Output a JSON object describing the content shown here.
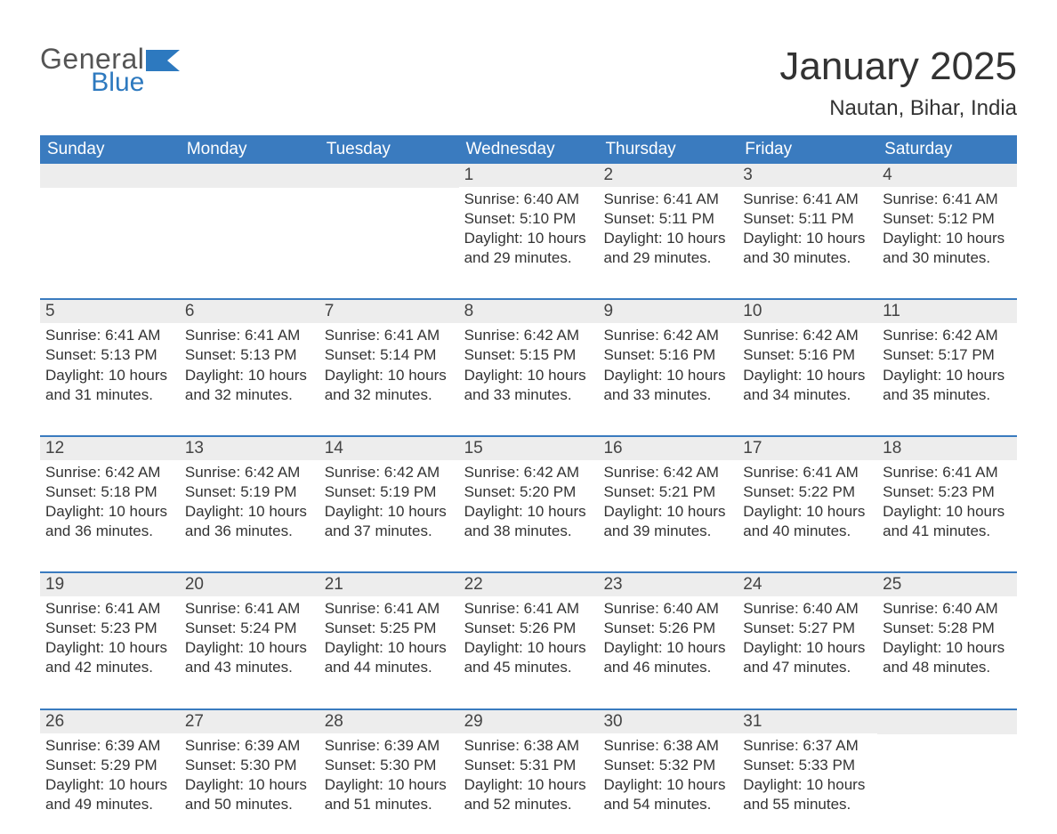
{
  "logo": {
    "word1": "General",
    "word2": "Blue",
    "flag_color": "#2d79bf",
    "gray": "#555555"
  },
  "title": "January 2025",
  "location": "Nautan, Bihar, India",
  "header_bg": "#3a7bbf",
  "band_bg": "#ededed",
  "weekdays": [
    "Sunday",
    "Monday",
    "Tuesday",
    "Wednesday",
    "Thursday",
    "Friday",
    "Saturday"
  ],
  "weeks": [
    [
      null,
      null,
      null,
      {
        "n": "1",
        "sunrise": "Sunrise: 6:40 AM",
        "sunset": "Sunset: 5:10 PM",
        "dl1": "Daylight: 10 hours",
        "dl2": "and 29 minutes."
      },
      {
        "n": "2",
        "sunrise": "Sunrise: 6:41 AM",
        "sunset": "Sunset: 5:11 PM",
        "dl1": "Daylight: 10 hours",
        "dl2": "and 29 minutes."
      },
      {
        "n": "3",
        "sunrise": "Sunrise: 6:41 AM",
        "sunset": "Sunset: 5:11 PM",
        "dl1": "Daylight: 10 hours",
        "dl2": "and 30 minutes."
      },
      {
        "n": "4",
        "sunrise": "Sunrise: 6:41 AM",
        "sunset": "Sunset: 5:12 PM",
        "dl1": "Daylight: 10 hours",
        "dl2": "and 30 minutes."
      }
    ],
    [
      {
        "n": "5",
        "sunrise": "Sunrise: 6:41 AM",
        "sunset": "Sunset: 5:13 PM",
        "dl1": "Daylight: 10 hours",
        "dl2": "and 31 minutes."
      },
      {
        "n": "6",
        "sunrise": "Sunrise: 6:41 AM",
        "sunset": "Sunset: 5:13 PM",
        "dl1": "Daylight: 10 hours",
        "dl2": "and 32 minutes."
      },
      {
        "n": "7",
        "sunrise": "Sunrise: 6:41 AM",
        "sunset": "Sunset: 5:14 PM",
        "dl1": "Daylight: 10 hours",
        "dl2": "and 32 minutes."
      },
      {
        "n": "8",
        "sunrise": "Sunrise: 6:42 AM",
        "sunset": "Sunset: 5:15 PM",
        "dl1": "Daylight: 10 hours",
        "dl2": "and 33 minutes."
      },
      {
        "n": "9",
        "sunrise": "Sunrise: 6:42 AM",
        "sunset": "Sunset: 5:16 PM",
        "dl1": "Daylight: 10 hours",
        "dl2": "and 33 minutes."
      },
      {
        "n": "10",
        "sunrise": "Sunrise: 6:42 AM",
        "sunset": "Sunset: 5:16 PM",
        "dl1": "Daylight: 10 hours",
        "dl2": "and 34 minutes."
      },
      {
        "n": "11",
        "sunrise": "Sunrise: 6:42 AM",
        "sunset": "Sunset: 5:17 PM",
        "dl1": "Daylight: 10 hours",
        "dl2": "and 35 minutes."
      }
    ],
    [
      {
        "n": "12",
        "sunrise": "Sunrise: 6:42 AM",
        "sunset": "Sunset: 5:18 PM",
        "dl1": "Daylight: 10 hours",
        "dl2": "and 36 minutes."
      },
      {
        "n": "13",
        "sunrise": "Sunrise: 6:42 AM",
        "sunset": "Sunset: 5:19 PM",
        "dl1": "Daylight: 10 hours",
        "dl2": "and 36 minutes."
      },
      {
        "n": "14",
        "sunrise": "Sunrise: 6:42 AM",
        "sunset": "Sunset: 5:19 PM",
        "dl1": "Daylight: 10 hours",
        "dl2": "and 37 minutes."
      },
      {
        "n": "15",
        "sunrise": "Sunrise: 6:42 AM",
        "sunset": "Sunset: 5:20 PM",
        "dl1": "Daylight: 10 hours",
        "dl2": "and 38 minutes."
      },
      {
        "n": "16",
        "sunrise": "Sunrise: 6:42 AM",
        "sunset": "Sunset: 5:21 PM",
        "dl1": "Daylight: 10 hours",
        "dl2": "and 39 minutes."
      },
      {
        "n": "17",
        "sunrise": "Sunrise: 6:41 AM",
        "sunset": "Sunset: 5:22 PM",
        "dl1": "Daylight: 10 hours",
        "dl2": "and 40 minutes."
      },
      {
        "n": "18",
        "sunrise": "Sunrise: 6:41 AM",
        "sunset": "Sunset: 5:23 PM",
        "dl1": "Daylight: 10 hours",
        "dl2": "and 41 minutes."
      }
    ],
    [
      {
        "n": "19",
        "sunrise": "Sunrise: 6:41 AM",
        "sunset": "Sunset: 5:23 PM",
        "dl1": "Daylight: 10 hours",
        "dl2": "and 42 minutes."
      },
      {
        "n": "20",
        "sunrise": "Sunrise: 6:41 AM",
        "sunset": "Sunset: 5:24 PM",
        "dl1": "Daylight: 10 hours",
        "dl2": "and 43 minutes."
      },
      {
        "n": "21",
        "sunrise": "Sunrise: 6:41 AM",
        "sunset": "Sunset: 5:25 PM",
        "dl1": "Daylight: 10 hours",
        "dl2": "and 44 minutes."
      },
      {
        "n": "22",
        "sunrise": "Sunrise: 6:41 AM",
        "sunset": "Sunset: 5:26 PM",
        "dl1": "Daylight: 10 hours",
        "dl2": "and 45 minutes."
      },
      {
        "n": "23",
        "sunrise": "Sunrise: 6:40 AM",
        "sunset": "Sunset: 5:26 PM",
        "dl1": "Daylight: 10 hours",
        "dl2": "and 46 minutes."
      },
      {
        "n": "24",
        "sunrise": "Sunrise: 6:40 AM",
        "sunset": "Sunset: 5:27 PM",
        "dl1": "Daylight: 10 hours",
        "dl2": "and 47 minutes."
      },
      {
        "n": "25",
        "sunrise": "Sunrise: 6:40 AM",
        "sunset": "Sunset: 5:28 PM",
        "dl1": "Daylight: 10 hours",
        "dl2": "and 48 minutes."
      }
    ],
    [
      {
        "n": "26",
        "sunrise": "Sunrise: 6:39 AM",
        "sunset": "Sunset: 5:29 PM",
        "dl1": "Daylight: 10 hours",
        "dl2": "and 49 minutes."
      },
      {
        "n": "27",
        "sunrise": "Sunrise: 6:39 AM",
        "sunset": "Sunset: 5:30 PM",
        "dl1": "Daylight: 10 hours",
        "dl2": "and 50 minutes."
      },
      {
        "n": "28",
        "sunrise": "Sunrise: 6:39 AM",
        "sunset": "Sunset: 5:30 PM",
        "dl1": "Daylight: 10 hours",
        "dl2": "and 51 minutes."
      },
      {
        "n": "29",
        "sunrise": "Sunrise: 6:38 AM",
        "sunset": "Sunset: 5:31 PM",
        "dl1": "Daylight: 10 hours",
        "dl2": "and 52 minutes."
      },
      {
        "n": "30",
        "sunrise": "Sunrise: 6:38 AM",
        "sunset": "Sunset: 5:32 PM",
        "dl1": "Daylight: 10 hours",
        "dl2": "and 54 minutes."
      },
      {
        "n": "31",
        "sunrise": "Sunrise: 6:37 AM",
        "sunset": "Sunset: 5:33 PM",
        "dl1": "Daylight: 10 hours",
        "dl2": "and 55 minutes."
      },
      null
    ]
  ]
}
